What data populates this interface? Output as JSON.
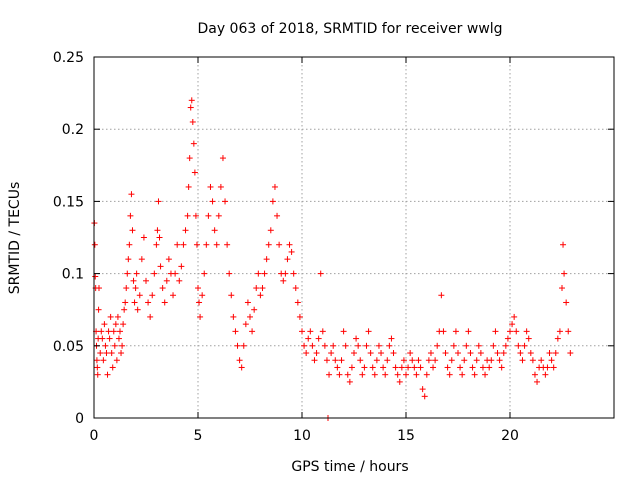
{
  "chart_data": {
    "type": "scatter",
    "title": "Day 063 of 2018, SRMTID for receiver wwlg",
    "xlabel": "GPS time / hours",
    "ylabel": "SRMTID / TECUs",
    "xlim": [
      0,
      25
    ],
    "ylim": [
      0,
      0.25
    ],
    "xticks": [
      0,
      5,
      10,
      15,
      20
    ],
    "xtick_labels": [
      "0",
      "5",
      "10",
      "15",
      "20"
    ],
    "yticks": [
      0,
      0.05,
      0.1,
      0.15,
      0.2,
      0.25
    ],
    "ytick_labels": [
      "0",
      "0.05",
      "0.1",
      "0.15",
      "0.2",
      "0.25"
    ],
    "grid": true,
    "marker": "plus",
    "series": [
      {
        "name": "SRMTID",
        "color": "#ff0000",
        "points": [
          [
            0.02,
            0.135
          ],
          [
            0.04,
            0.12
          ],
          [
            0.06,
            0.098
          ],
          [
            0.08,
            0.09
          ],
          [
            0.1,
            0.06
          ],
          [
            0.12,
            0.05
          ],
          [
            0.14,
            0.04
          ],
          [
            0.16,
            0.035
          ],
          [
            0.18,
            0.03
          ],
          [
            0.2,
            0.055
          ],
          [
            0.22,
            0.075
          ],
          [
            0.24,
            0.09
          ],
          [
            0.3,
            0.045
          ],
          [
            0.35,
            0.06
          ],
          [
            0.4,
            0.055
          ],
          [
            0.45,
            0.04
          ],
          [
            0.5,
            0.065
          ],
          [
            0.55,
            0.05
          ],
          [
            0.6,
            0.045
          ],
          [
            0.65,
            0.03
          ],
          [
            0.7,
            0.06
          ],
          [
            0.75,
            0.055
          ],
          [
            0.8,
            0.07
          ],
          [
            0.85,
            0.045
          ],
          [
            0.9,
            0.035
          ],
          [
            0.95,
            0.06
          ],
          [
            1.0,
            0.05
          ],
          [
            1.05,
            0.065
          ],
          [
            1.1,
            0.04
          ],
          [
            1.15,
            0.07
          ],
          [
            1.2,
            0.055
          ],
          [
            1.25,
            0.06
          ],
          [
            1.3,
            0.045
          ],
          [
            1.35,
            0.05
          ],
          [
            1.4,
            0.065
          ],
          [
            1.45,
            0.075
          ],
          [
            1.5,
            0.08
          ],
          [
            1.55,
            0.09
          ],
          [
            1.6,
            0.1
          ],
          [
            1.65,
            0.11
          ],
          [
            1.7,
            0.12
          ],
          [
            1.75,
            0.14
          ],
          [
            1.8,
            0.155
          ],
          [
            1.85,
            0.13
          ],
          [
            1.9,
            0.095
          ],
          [
            1.95,
            0.08
          ],
          [
            2.0,
            0.09
          ],
          [
            2.05,
            0.1
          ],
          [
            2.1,
            0.075
          ],
          [
            2.2,
            0.085
          ],
          [
            2.3,
            0.11
          ],
          [
            2.4,
            0.125
          ],
          [
            2.5,
            0.095
          ],
          [
            2.6,
            0.08
          ],
          [
            2.7,
            0.07
          ],
          [
            2.8,
            0.085
          ],
          [
            2.9,
            0.1
          ],
          [
            3.0,
            0.12
          ],
          [
            3.05,
            0.13
          ],
          [
            3.1,
            0.15
          ],
          [
            3.15,
            0.125
          ],
          [
            3.2,
            0.105
          ],
          [
            3.3,
            0.09
          ],
          [
            3.4,
            0.08
          ],
          [
            3.5,
            0.095
          ],
          [
            3.6,
            0.11
          ],
          [
            3.7,
            0.1
          ],
          [
            3.8,
            0.085
          ],
          [
            3.9,
            0.1
          ],
          [
            4.0,
            0.12
          ],
          [
            4.1,
            0.095
          ],
          [
            4.2,
            0.105
          ],
          [
            4.3,
            0.12
          ],
          [
            4.4,
            0.13
          ],
          [
            4.5,
            0.14
          ],
          [
            4.55,
            0.16
          ],
          [
            4.6,
            0.18
          ],
          [
            4.65,
            0.215
          ],
          [
            4.7,
            0.22
          ],
          [
            4.75,
            0.205
          ],
          [
            4.8,
            0.19
          ],
          [
            4.85,
            0.17
          ],
          [
            4.9,
            0.14
          ],
          [
            4.95,
            0.12
          ],
          [
            5.0,
            0.09
          ],
          [
            5.05,
            0.08
          ],
          [
            5.1,
            0.07
          ],
          [
            5.2,
            0.085
          ],
          [
            5.3,
            0.1
          ],
          [
            5.4,
            0.12
          ],
          [
            5.5,
            0.14
          ],
          [
            5.6,
            0.16
          ],
          [
            5.7,
            0.15
          ],
          [
            5.8,
            0.13
          ],
          [
            5.9,
            0.12
          ],
          [
            6.0,
            0.14
          ],
          [
            6.1,
            0.16
          ],
          [
            6.2,
            0.18
          ],
          [
            6.3,
            0.15
          ],
          [
            6.4,
            0.12
          ],
          [
            6.5,
            0.1
          ],
          [
            6.6,
            0.085
          ],
          [
            6.7,
            0.07
          ],
          [
            6.8,
            0.06
          ],
          [
            6.9,
            0.05
          ],
          [
            7.0,
            0.04
          ],
          [
            7.1,
            0.035
          ],
          [
            7.2,
            0.05
          ],
          [
            7.3,
            0.065
          ],
          [
            7.4,
            0.08
          ],
          [
            7.5,
            0.07
          ],
          [
            7.6,
            0.06
          ],
          [
            7.7,
            0.075
          ],
          [
            7.8,
            0.09
          ],
          [
            7.9,
            0.1
          ],
          [
            8.0,
            0.085
          ],
          [
            8.1,
            0.09
          ],
          [
            8.2,
            0.1
          ],
          [
            8.3,
            0.11
          ],
          [
            8.4,
            0.12
          ],
          [
            8.5,
            0.13
          ],
          [
            8.6,
            0.15
          ],
          [
            8.7,
            0.16
          ],
          [
            8.8,
            0.14
          ],
          [
            8.9,
            0.12
          ],
          [
            9.0,
            0.1
          ],
          [
            9.1,
            0.095
          ],
          [
            9.2,
            0.1
          ],
          [
            9.3,
            0.11
          ],
          [
            9.4,
            0.12
          ],
          [
            9.5,
            0.115
          ],
          [
            9.6,
            0.1
          ],
          [
            9.7,
            0.09
          ],
          [
            9.8,
            0.08
          ],
          [
            9.9,
            0.07
          ],
          [
            10.0,
            0.06
          ],
          [
            10.1,
            0.05
          ],
          [
            10.2,
            0.045
          ],
          [
            10.3,
            0.055
          ],
          [
            10.4,
            0.06
          ],
          [
            10.5,
            0.05
          ],
          [
            10.6,
            0.04
          ],
          [
            10.7,
            0.045
          ],
          [
            10.8,
            0.055
          ],
          [
            10.9,
            0.1
          ],
          [
            11.0,
            0.06
          ],
          [
            11.1,
            0.05
          ],
          [
            11.2,
            0.04
          ],
          [
            11.25,
            0.0
          ],
          [
            11.3,
            0.03
          ],
          [
            11.4,
            0.045
          ],
          [
            11.5,
            0.05
          ],
          [
            11.6,
            0.04
          ],
          [
            11.7,
            0.035
          ],
          [
            11.8,
            0.03
          ],
          [
            11.9,
            0.04
          ],
          [
            12.0,
            0.06
          ],
          [
            12.1,
            0.05
          ],
          [
            12.2,
            0.03
          ],
          [
            12.3,
            0.025
          ],
          [
            12.4,
            0.035
          ],
          [
            12.5,
            0.045
          ],
          [
            12.6,
            0.055
          ],
          [
            12.7,
            0.05
          ],
          [
            12.8,
            0.04
          ],
          [
            12.9,
            0.03
          ],
          [
            13.0,
            0.035
          ],
          [
            13.1,
            0.05
          ],
          [
            13.2,
            0.06
          ],
          [
            13.3,
            0.045
          ],
          [
            13.4,
            0.035
          ],
          [
            13.5,
            0.03
          ],
          [
            13.6,
            0.04
          ],
          [
            13.7,
            0.05
          ],
          [
            13.8,
            0.045
          ],
          [
            13.9,
            0.035
          ],
          [
            14.0,
            0.03
          ],
          [
            14.1,
            0.04
          ],
          [
            14.2,
            0.05
          ],
          [
            14.3,
            0.055
          ],
          [
            14.4,
            0.045
          ],
          [
            14.5,
            0.035
          ],
          [
            14.6,
            0.03
          ],
          [
            14.7,
            0.025
          ],
          [
            14.8,
            0.035
          ],
          [
            14.9,
            0.04
          ],
          [
            15.0,
            0.03
          ],
          [
            15.1,
            0.035
          ],
          [
            15.2,
            0.045
          ],
          [
            15.3,
            0.04
          ],
          [
            15.4,
            0.035
          ],
          [
            15.5,
            0.03
          ],
          [
            15.6,
            0.04
          ],
          [
            15.7,
            0.035
          ],
          [
            15.8,
            0.02
          ],
          [
            15.9,
            0.015
          ],
          [
            16.0,
            0.03
          ],
          [
            16.1,
            0.04
          ],
          [
            16.2,
            0.045
          ],
          [
            16.3,
            0.035
          ],
          [
            16.4,
            0.04
          ],
          [
            16.5,
            0.05
          ],
          [
            16.6,
            0.06
          ],
          [
            16.7,
            0.085
          ],
          [
            16.8,
            0.06
          ],
          [
            16.9,
            0.045
          ],
          [
            17.0,
            0.035
          ],
          [
            17.1,
            0.03
          ],
          [
            17.2,
            0.04
          ],
          [
            17.3,
            0.05
          ],
          [
            17.4,
            0.06
          ],
          [
            17.5,
            0.045
          ],
          [
            17.6,
            0.035
          ],
          [
            17.7,
            0.03
          ],
          [
            17.8,
            0.04
          ],
          [
            17.9,
            0.05
          ],
          [
            18.0,
            0.06
          ],
          [
            18.1,
            0.045
          ],
          [
            18.2,
            0.035
          ],
          [
            18.3,
            0.03
          ],
          [
            18.4,
            0.04
          ],
          [
            18.5,
            0.05
          ],
          [
            18.6,
            0.045
          ],
          [
            18.7,
            0.035
          ],
          [
            18.8,
            0.03
          ],
          [
            18.9,
            0.04
          ],
          [
            19.0,
            0.035
          ],
          [
            19.1,
            0.04
          ],
          [
            19.2,
            0.05
          ],
          [
            19.3,
            0.06
          ],
          [
            19.4,
            0.045
          ],
          [
            19.5,
            0.04
          ],
          [
            19.6,
            0.035
          ],
          [
            19.7,
            0.045
          ],
          [
            19.8,
            0.05
          ],
          [
            19.9,
            0.055
          ],
          [
            20.0,
            0.06
          ],
          [
            20.1,
            0.065
          ],
          [
            20.2,
            0.07
          ],
          [
            20.3,
            0.06
          ],
          [
            20.4,
            0.05
          ],
          [
            20.5,
            0.045
          ],
          [
            20.6,
            0.04
          ],
          [
            20.7,
            0.05
          ],
          [
            20.8,
            0.06
          ],
          [
            20.9,
            0.055
          ],
          [
            21.0,
            0.045
          ],
          [
            21.1,
            0.04
          ],
          [
            21.2,
            0.03
          ],
          [
            21.3,
            0.025
          ],
          [
            21.4,
            0.035
          ],
          [
            21.5,
            0.04
          ],
          [
            21.6,
            0.035
          ],
          [
            21.7,
            0.03
          ],
          [
            21.8,
            0.035
          ],
          [
            21.9,
            0.045
          ],
          [
            22.0,
            0.04
          ],
          [
            22.1,
            0.035
          ],
          [
            22.2,
            0.045
          ],
          [
            22.3,
            0.055
          ],
          [
            22.4,
            0.06
          ],
          [
            22.5,
            0.09
          ],
          [
            22.55,
            0.12
          ],
          [
            22.6,
            0.1
          ],
          [
            22.7,
            0.08
          ],
          [
            22.8,
            0.06
          ],
          [
            22.9,
            0.045
          ]
        ]
      }
    ]
  }
}
